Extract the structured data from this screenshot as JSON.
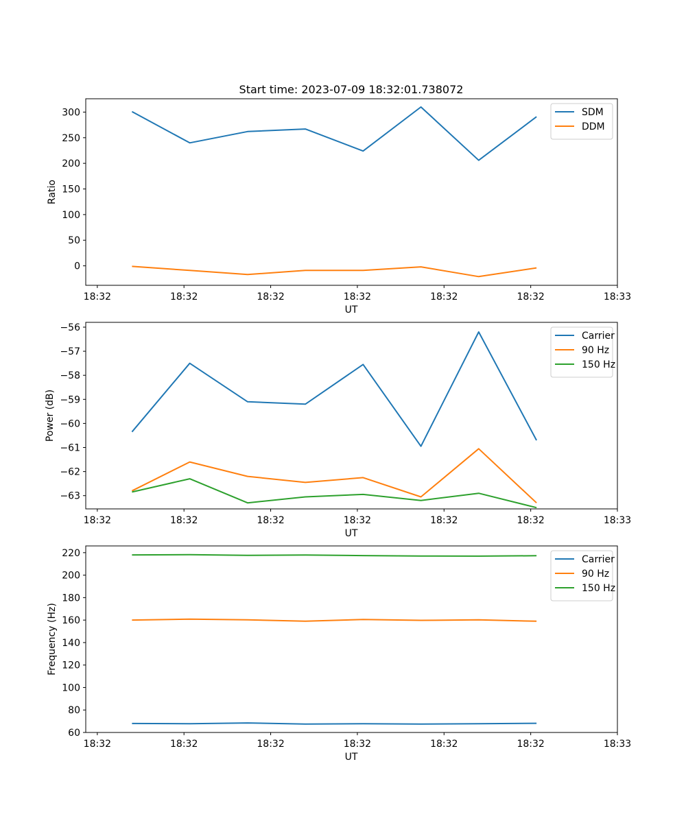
{
  "chart_data": [
    {
      "type": "line",
      "title": "Start time: 2023-07-09 18:32:01.738072",
      "xlabel": "UT",
      "ylabel": "Ratio",
      "x": [
        1,
        2,
        3,
        4,
        5,
        6,
        7,
        8
      ],
      "xlim": [
        0.2,
        9.4
      ],
      "xticks": [
        0.4,
        1.9,
        3.4,
        4.9,
        6.4,
        7.9,
        9.4
      ],
      "xtick_labels": [
        "18:32",
        "18:32",
        "18:32",
        "18:32",
        "18:32",
        "18:32",
        "18:33"
      ],
      "ylim": [
        -38,
        326
      ],
      "yticks": [
        0,
        50,
        100,
        150,
        200,
        250,
        300
      ],
      "ytick_labels": [
        "0",
        "50",
        "100",
        "150",
        "200",
        "250",
        "300"
      ],
      "legend_position": "top-right",
      "series": [
        {
          "name": "SDM",
          "color": "#1f77b4",
          "values": [
            301,
            240,
            262,
            267,
            224,
            310,
            206,
            291
          ]
        },
        {
          "name": "DDM",
          "color": "#ff7f0e",
          "values": [
            -1,
            -9,
            -17,
            -9,
            -9,
            -2,
            -21,
            -4
          ]
        }
      ]
    },
    {
      "type": "line",
      "title": "",
      "xlabel": "UT",
      "ylabel": "Power (dB)",
      "x": [
        1,
        2,
        3,
        4,
        5,
        6,
        7,
        8
      ],
      "xlim": [
        0.2,
        9.4
      ],
      "xticks": [
        0.4,
        1.9,
        3.4,
        4.9,
        6.4,
        7.9,
        9.4
      ],
      "xtick_labels": [
        "18:32",
        "18:32",
        "18:32",
        "18:32",
        "18:32",
        "18:32",
        "18:33"
      ],
      "ylim": [
        -63.55,
        -55.8
      ],
      "yticks": [
        -63,
        -62,
        -61,
        -60,
        -59,
        -58,
        -57,
        -56
      ],
      "ytick_labels": [
        "−63",
        "−62",
        "−61",
        "−60",
        "−59",
        "−58",
        "−57",
        "−56"
      ],
      "legend_position": "top-right",
      "series": [
        {
          "name": "Carrier",
          "color": "#1f77b4",
          "values": [
            -60.35,
            -57.5,
            -59.1,
            -59.2,
            -57.55,
            -60.95,
            -56.2,
            -60.7
          ]
        },
        {
          "name": "90 Hz",
          "color": "#ff7f0e",
          "values": [
            -62.8,
            -61.6,
            -62.2,
            -62.45,
            -62.25,
            -63.05,
            -61.05,
            -63.3
          ]
        },
        {
          "name": "150 Hz",
          "color": "#2ca02c",
          "values": [
            -62.85,
            -62.3,
            -63.3,
            -63.05,
            -62.95,
            -63.2,
            -62.9,
            -63.5
          ]
        }
      ]
    },
    {
      "type": "line",
      "title": "",
      "xlabel": "UT",
      "ylabel": "Frequency (Hz)",
      "x": [
        1,
        2,
        3,
        4,
        5,
        6,
        7,
        8
      ],
      "xlim": [
        0.2,
        9.4
      ],
      "xticks": [
        0.4,
        1.9,
        3.4,
        4.9,
        6.4,
        7.9,
        9.4
      ],
      "xtick_labels": [
        "18:32",
        "18:32",
        "18:32",
        "18:32",
        "18:32",
        "18:32",
        "18:33"
      ],
      "ylim": [
        60,
        226
      ],
      "yticks": [
        60,
        80,
        100,
        120,
        140,
        160,
        180,
        200,
        220
      ],
      "ytick_labels": [
        "60",
        "80",
        "100",
        "120",
        "140",
        "160",
        "180",
        "200",
        "220"
      ],
      "legend_position": "top-right",
      "series": [
        {
          "name": "Carrier",
          "color": "#1f77b4",
          "values": [
            68,
            67.8,
            68.5,
            67.5,
            67.8,
            67.5,
            67.8,
            68.2
          ]
        },
        {
          "name": "90 Hz",
          "color": "#ff7f0e",
          "values": [
            160,
            160.8,
            160.2,
            159,
            160.5,
            159.8,
            160.2,
            159
          ]
        },
        {
          "name": "150 Hz",
          "color": "#2ca02c",
          "values": [
            218,
            218.2,
            217.6,
            217.9,
            217.4,
            217,
            216.9,
            217.3
          ]
        }
      ]
    }
  ]
}
